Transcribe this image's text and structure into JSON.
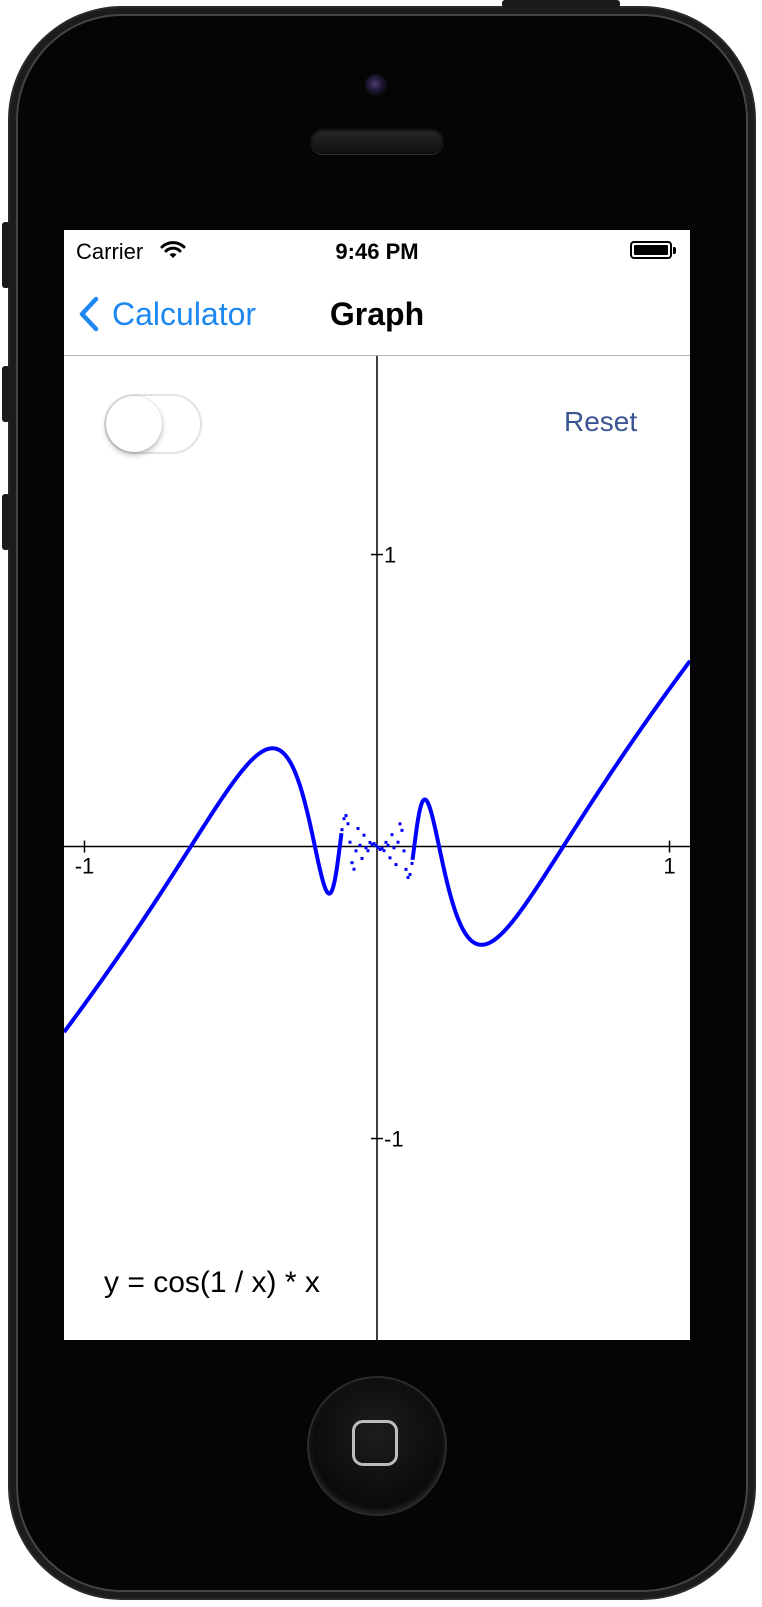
{
  "status_bar": {
    "carrier": "Carrier",
    "time": "9:46 PM"
  },
  "nav": {
    "back_label": "Calculator",
    "title": "Graph"
  },
  "controls": {
    "toggle_on": false,
    "reset_label": "Reset"
  },
  "formula": "y = cos(1 / x) * x",
  "colors": {
    "curve": "#0000ff",
    "back_tint": "#1e88f2",
    "reset_text": "#3a5592"
  },
  "chart_data": {
    "type": "line",
    "function": "cos(1 / x) * x",
    "xlim": [
      -1.07,
      1.07
    ],
    "ylim": [
      -1.69,
      1.68
    ],
    "x_ticks": [
      -1,
      1
    ],
    "y_ticks": [
      1,
      -1
    ],
    "x_tick_labels": [
      "-1",
      "1"
    ],
    "y_tick_labels": [
      "1",
      "-1"
    ],
    "series": [
      {
        "color": "#0000ff"
      }
    ]
  }
}
